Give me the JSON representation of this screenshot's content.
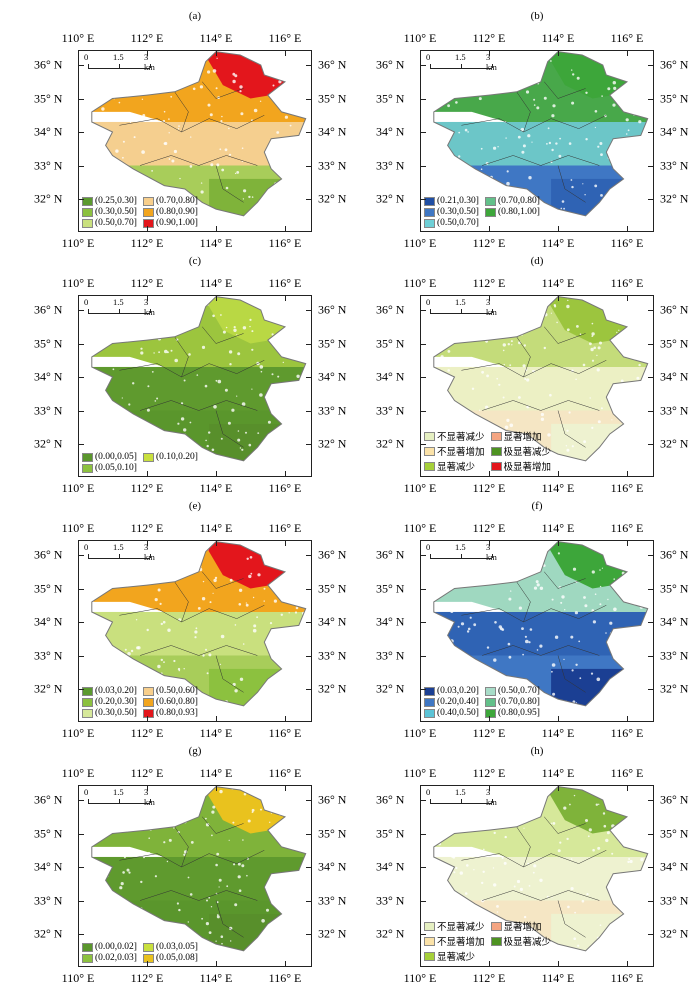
{
  "lon_labels": [
    "110° E",
    "112° E",
    "114° E",
    "116° E"
  ],
  "lat_labels": [
    "36° N",
    "35° N",
    "34° N",
    "33° N",
    "32° N"
  ],
  "scale_bar": {
    "labels": [
      "0",
      "1.5",
      "3 km"
    ]
  },
  "panels": [
    {
      "title": "(a)",
      "colors": {
        "tip": "#e3161c",
        "north": "#f2a51e",
        "mid": "#f5cf8f",
        "south": "#a8cd5a",
        "south2": "#7fb33a"
      },
      "legend": [
        {
          "label": "(0.25,0.30]",
          "color": "#5b9a2e"
        },
        {
          "label": "(0.70,0.80]",
          "color": "#f8cf8c"
        },
        {
          "label": "(0.30,0.50]",
          "color": "#8cc13f"
        },
        {
          "label": "(0.80,0.90]",
          "color": "#f2a51e"
        },
        {
          "label": "(0.50,0.70]",
          "color": "#c9e07e"
        },
        {
          "label": "(0.90,1.00]",
          "color": "#e3161c"
        }
      ]
    },
    {
      "title": "(b)",
      "colors": {
        "tip": "#3da63a",
        "north": "#48a84a",
        "mid": "#6cc6c8",
        "south": "#3f77c4",
        "south2": "#2f63b4"
      },
      "legend": [
        {
          "label": "(0.21,0.30]",
          "color": "#1f4ea3"
        },
        {
          "label": "(0.70,0.80]",
          "color": "#63c08a"
        },
        {
          "label": "(0.30,0.50]",
          "color": "#3f77c4"
        },
        {
          "label": "(0.80,1.00]",
          "color": "#3da63a"
        },
        {
          "label": "(0.50,0.70]",
          "color": "#6fcfd6"
        }
      ]
    },
    {
      "title": "(c)",
      "colors": {
        "tip": "#b9d844",
        "north": "#9cc53e",
        "mid": "#5f9a2e",
        "south": "#5a962c",
        "south2": "#588f2b"
      },
      "legend": [
        {
          "label": "(0.00,0.05]",
          "color": "#5a962c"
        },
        {
          "label": "(0.10,0.20]",
          "color": "#c9e03e"
        },
        {
          "label": "(0.05,0.10]",
          "color": "#8cc13f"
        }
      ]
    },
    {
      "title": "(d)",
      "colors": {
        "tip": "#9cc53e",
        "north": "#c4dc7a",
        "mid": "#ecf0c4",
        "south": "#f5e6c4",
        "south2": "#eef2d0"
      },
      "legend": [
        {
          "label": "不显著减少",
          "color": "#e6f0c2"
        },
        {
          "label": "显著增加",
          "color": "#f4a582"
        },
        {
          "label": "不显著增加",
          "color": "#fbe2a8"
        },
        {
          "label": "极显著减少",
          "color": "#4d9221"
        },
        {
          "label": "显著减少",
          "color": "#a6d03a"
        },
        {
          "label": "极显著增加",
          "color": "#e3161c"
        }
      ]
    },
    {
      "title": "(e)",
      "colors": {
        "tip": "#e3161c",
        "north": "#f2a51e",
        "mid": "#c9e07e",
        "south": "#a8cd5a",
        "south2": "#8cc13f"
      },
      "legend": [
        {
          "label": "(0.03,0.20]",
          "color": "#5b9a2e"
        },
        {
          "label": "(0.50,0.60]",
          "color": "#f8cf8c"
        },
        {
          "label": "(0.20,0.30]",
          "color": "#8cc13f"
        },
        {
          "label": "(0.60,0.80]",
          "color": "#f2a51e"
        },
        {
          "label": "(0.30,0.50]",
          "color": "#d6e89a"
        },
        {
          "label": "(0.80,0.93]",
          "color": "#e3161c"
        }
      ]
    },
    {
      "title": "(f)",
      "colors": {
        "tip": "#3da63a",
        "north": "#9fd8c0",
        "mid": "#2f63b4",
        "south": "#3f77c4",
        "south2": "#1b3f93"
      },
      "legend": [
        {
          "label": "(0.03,0.20]",
          "color": "#1b3f93"
        },
        {
          "label": "(0.50,0.70]",
          "color": "#a8dcc8"
        },
        {
          "label": "(0.20,0.40]",
          "color": "#3f77c4"
        },
        {
          "label": "(0.70,0.80]",
          "color": "#63c08a"
        },
        {
          "label": "(0.40,0.50]",
          "color": "#5cc3d6"
        },
        {
          "label": "(0.80,0.95]",
          "color": "#3da63a"
        }
      ]
    },
    {
      "title": "(g)",
      "colors": {
        "tip": "#e9c21e",
        "north": "#7fb33a",
        "mid": "#5f9a2e",
        "south": "#5a962c",
        "south2": "#588f2b"
      },
      "legend": [
        {
          "label": "(0.00,0.02]",
          "color": "#5a962c"
        },
        {
          "label": "(0.03,0.05]",
          "color": "#c9e03e"
        },
        {
          "label": "(0.02,0.03]",
          "color": "#8cc13f"
        },
        {
          "label": "(0.05,0.08]",
          "color": "#e9c21e"
        }
      ]
    },
    {
      "title": "(h)",
      "colors": {
        "tip": "#7fb33a",
        "north": "#d6e89a",
        "mid": "#eef2d0",
        "south": "#f5e6c4",
        "south2": "#eef2d0"
      },
      "legend": [
        {
          "label": "不显著减少",
          "color": "#e6f0c2"
        },
        {
          "label": "显著增加",
          "color": "#f4a582"
        },
        {
          "label": "不显著增加",
          "color": "#fbe2a8"
        },
        {
          "label": "极显著减少",
          "color": "#4d9221"
        },
        {
          "label": "显著减少",
          "color": "#a6d03a"
        }
      ]
    }
  ]
}
